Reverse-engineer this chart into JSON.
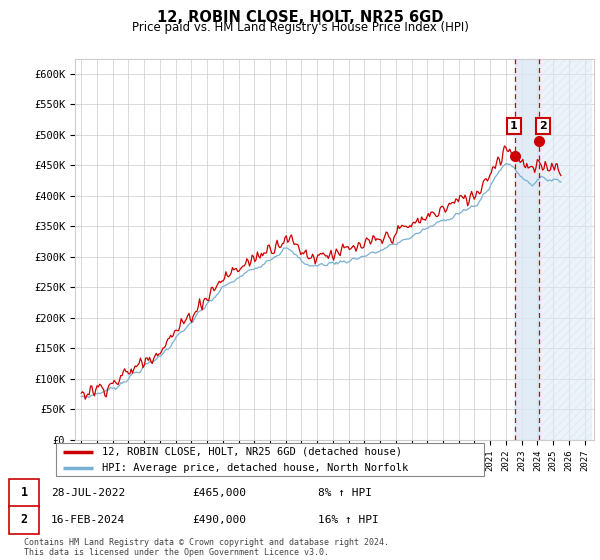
{
  "title": "12, ROBIN CLOSE, HOLT, NR25 6GD",
  "subtitle": "Price paid vs. HM Land Registry's House Price Index (HPI)",
  "ylabel_ticks": [
    "£0",
    "£50K",
    "£100K",
    "£150K",
    "£200K",
    "£250K",
    "£300K",
    "£350K",
    "£400K",
    "£450K",
    "£500K",
    "£550K",
    "£600K"
  ],
  "ytick_values": [
    0,
    50000,
    100000,
    150000,
    200000,
    250000,
    300000,
    350000,
    400000,
    450000,
    500000,
    550000,
    600000
  ],
  "ylim": [
    0,
    620000
  ],
  "sale1_date": "28-JUL-2022",
  "sale1_price": 465000,
  "sale1_pct": "8%",
  "sale2_date": "16-FEB-2024",
  "sale2_price": 490000,
  "sale2_pct": "16%",
  "legend_line1": "12, ROBIN CLOSE, HOLT, NR25 6GD (detached house)",
  "legend_line2": "HPI: Average price, detached house, North Norfolk",
  "footnote": "Contains HM Land Registry data © Crown copyright and database right 2024.\nThis data is licensed under the Open Government Licence v3.0.",
  "line_color_red": "#cc0000",
  "line_color_blue": "#7ab0d4",
  "bg_color": "#ffffff",
  "grid_color": "#cccccc",
  "sale1_x": 2022.57,
  "sale2_x": 2024.12,
  "label1": "1",
  "label2": "2",
  "label_box_color": "#cc0000",
  "shade1_color": "#dae8f5",
  "shade2_color": "#dae8f5"
}
